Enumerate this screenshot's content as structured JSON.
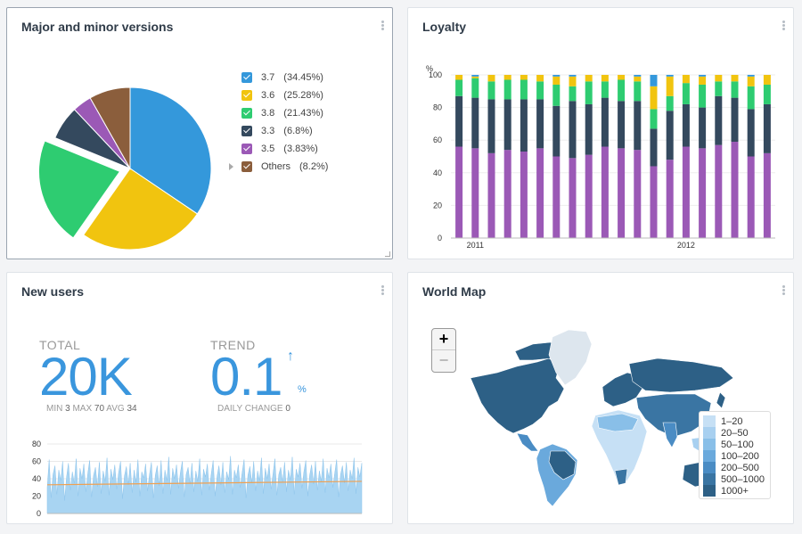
{
  "versions_panel": {
    "title": "Major and minor versions",
    "legend": [
      {
        "label": "3.7",
        "pct": "(34.45%)",
        "color": "#3498db"
      },
      {
        "label": "3.6",
        "pct": "(25.28%)",
        "color": "#f1c40f"
      },
      {
        "label": "3.8",
        "pct": "(21.43%)",
        "color": "#2ecc71"
      },
      {
        "label": "3.3",
        "pct": "(6.8%)",
        "color": "#34495e"
      },
      {
        "label": "3.5",
        "pct": "(3.83%)",
        "color": "#9b59b6"
      },
      {
        "label": "Others",
        "pct": "(8.2%)",
        "color": "#8b5e3c"
      }
    ]
  },
  "loyalty_panel": {
    "title": "Loyalty"
  },
  "new_users_panel": {
    "title": "New users",
    "total_label": "TOTAL",
    "total_value": "20K",
    "min_label": "MIN",
    "min_value": "3",
    "max_label": "MAX",
    "max_value": "70",
    "avg_label": "AVG",
    "avg_value": "34",
    "trend_label": "TREND",
    "trend_value": "0.1",
    "trend_arrow": "↑",
    "trend_unit": "%",
    "daily_change_label": "DAILY CHANGE",
    "daily_change_value": "0"
  },
  "map_panel": {
    "title": "World Map",
    "zoom_in": "+",
    "zoom_out": "−",
    "legend": [
      {
        "label": "1–20",
        "color": "#c6e0f5"
      },
      {
        "label": "20–50",
        "color": "#a8d0f0"
      },
      {
        "label": "50–100",
        "color": "#89bfe8"
      },
      {
        "label": "100–200",
        "color": "#6aa9dc"
      },
      {
        "label": "200–500",
        "color": "#4a8cc4"
      },
      {
        "label": "500–1000",
        "color": "#3a75a3"
      },
      {
        "label": "1000+",
        "color": "#2d6086"
      }
    ]
  },
  "chart_data": [
    {
      "type": "pie",
      "categories": [
        "3.7",
        "3.6",
        "3.8",
        "3.3",
        "3.5",
        "Others"
      ],
      "values": [
        34.45,
        25.28,
        21.43,
        6.8,
        3.83,
        8.2
      ],
      "colors": [
        "#3498db",
        "#f1c40f",
        "#2ecc71",
        "#34495e",
        "#9b59b6",
        "#8b5e3c"
      ],
      "exploded": "3.8",
      "title": "Major and minor versions"
    },
    {
      "type": "bar",
      "stacked": true,
      "title": "Loyalty",
      "ylabel": "%",
      "ylim": [
        0,
        100
      ],
      "yticks": [
        0,
        20,
        40,
        60,
        80,
        100
      ],
      "x_labels": [
        "2011",
        "2012"
      ],
      "series_colors": [
        "#9b59b6",
        "#34495e",
        "#2ecc71",
        "#f1c40f",
        "#3498db"
      ],
      "bars": [
        [
          56,
          31,
          10,
          3,
          0
        ],
        [
          55,
          31,
          12,
          1,
          1
        ],
        [
          52,
          33,
          11,
          4,
          0
        ],
        [
          54,
          31,
          12,
          3,
          0
        ],
        [
          53,
          32,
          12,
          3,
          0
        ],
        [
          55,
          30,
          11,
          4,
          0
        ],
        [
          50,
          31,
          13,
          5,
          1
        ],
        [
          49,
          35,
          9,
          6,
          1
        ],
        [
          51,
          31,
          14,
          4,
          0
        ],
        [
          56,
          30,
          10,
          4,
          0
        ],
        [
          55,
          29,
          13,
          3,
          0
        ],
        [
          54,
          30,
          12,
          3,
          1
        ],
        [
          44,
          23,
          12,
          14,
          7
        ],
        [
          48,
          30,
          9,
          12,
          1
        ],
        [
          56,
          26,
          13,
          5,
          0
        ],
        [
          55,
          25,
          14,
          5,
          1
        ],
        [
          57,
          30,
          9,
          4,
          0
        ],
        [
          59,
          27,
          10,
          4,
          0
        ],
        [
          50,
          29,
          14,
          6,
          1
        ],
        [
          52,
          30,
          12,
          6,
          0
        ]
      ]
    },
    {
      "type": "area",
      "title": "",
      "ylim": [
        0,
        80
      ],
      "yticks": [
        0,
        20,
        40,
        60,
        80
      ],
      "series": [
        {
          "values": [
            30,
            62,
            18,
            45,
            55,
            22,
            50,
            38,
            60,
            15,
            42,
            58,
            27,
            48,
            35,
            63,
            20,
            52,
            40,
            57,
            25,
            46,
            61,
            19,
            44,
            53,
            31,
            59,
            23,
            49,
            37,
            64,
            21,
            51,
            39,
            56,
            28,
            47,
            60,
            17,
            43,
            54,
            33,
            58,
            24,
            50,
            36,
            62,
            20,
            48,
            41,
            57,
            26,
            45,
            59,
            18,
            44,
            55,
            32,
            61,
            23,
            50,
            38,
            65,
            22,
            52,
            40,
            56,
            29,
            47,
            60,
            19,
            45,
            53,
            34,
            58,
            25,
            49,
            37,
            63,
            21,
            51,
            42,
            57,
            27,
            46,
            61,
            20,
            43,
            55,
            33,
            59,
            24,
            48,
            39,
            66,
            22,
            50,
            41,
            56,
            30,
            47,
            62,
            18,
            44,
            54,
            35,
            60,
            26,
            49,
            38,
            64,
            23,
            52,
            40,
            57,
            28,
            46,
            63,
            21,
            45,
            53,
            36,
            59,
            25,
            50,
            39,
            65,
            22,
            51,
            42,
            58,
            29,
            48,
            61,
            20,
            44,
            56,
            34,
            60,
            27,
            49,
            37,
            63,
            24,
            52,
            41,
            57,
            30,
            47,
            62,
            19,
            45,
            55,
            35,
            59,
            26,
            50,
            40,
            64,
            23,
            53,
            42,
            58
          ]
        },
        {
          "name": "trend",
          "values": [
            33,
            37
          ]
        }
      ]
    }
  ]
}
